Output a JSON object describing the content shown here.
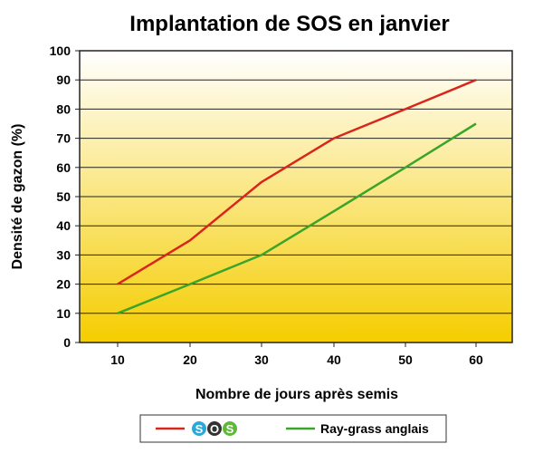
{
  "chart_data": {
    "type": "line",
    "title": "Implantation de SOS en janvier",
    "xlabel": "Nombre de jours après semis",
    "ylabel": "Densité de gazon (%)",
    "x": [
      10,
      20,
      30,
      40,
      50,
      60
    ],
    "x_ticks": [
      "10",
      "20",
      "30",
      "40",
      "50",
      "60"
    ],
    "y_ticks": [
      "0",
      "10",
      "20",
      "30",
      "40",
      "50",
      "60",
      "70",
      "80",
      "90",
      "100"
    ],
    "ylim": [
      0,
      100
    ],
    "grid": true,
    "legend_position": "bottom",
    "series": [
      {
        "name": "SOS",
        "color": "#d9261c",
        "values": [
          20,
          35,
          55,
          70,
          80,
          90
        ]
      },
      {
        "name": "Ray-grass anglais",
        "color": "#3aa52a",
        "values": [
          10,
          20,
          30,
          45,
          60,
          75
        ]
      }
    ],
    "background_gradient": [
      "#ffffff",
      "#f5cd00"
    ]
  },
  "legend": {
    "sos_logo_letters": [
      "S",
      "O",
      "S"
    ],
    "sos_logo_colors": [
      "#2aa8d8",
      "#333333",
      "#5fb83a"
    ],
    "ray_grass_label": "Ray-grass anglais"
  }
}
